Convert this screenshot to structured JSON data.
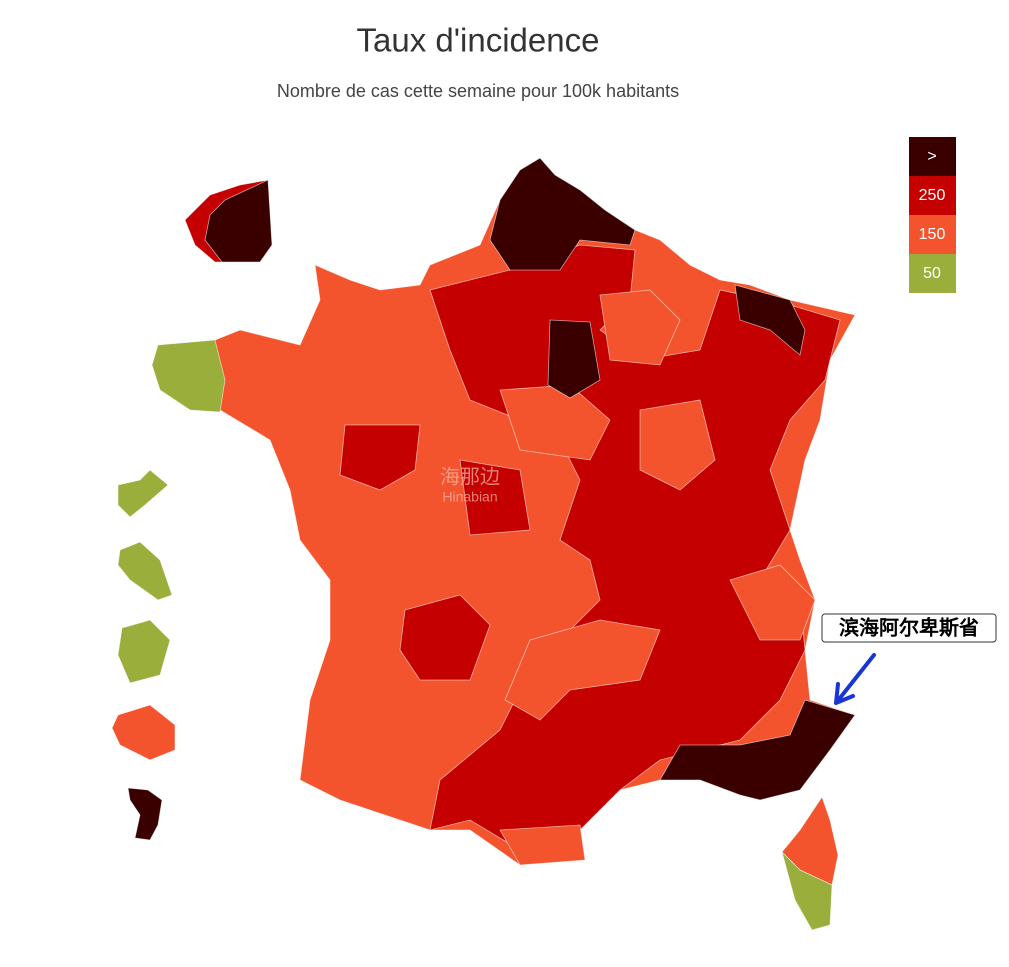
{
  "header": {
    "title": "Taux d'incidence",
    "subtitle": "Nombre de cas cette semaine pour 100k habitants"
  },
  "legend": {
    "items": [
      {
        "label": ">",
        "color": "#3a0000"
      },
      {
        "label": "250",
        "color": "#c40000"
      },
      {
        "label": "150",
        "color": "#f4542d"
      },
      {
        "label": "50",
        "color": "#9aae3c"
      }
    ]
  },
  "annotation": {
    "label": "滨海阿尔卑斯省",
    "color": "#1a35d6"
  },
  "watermark": {
    "label": "海那边",
    "sublabel": "Hinabian"
  }
}
